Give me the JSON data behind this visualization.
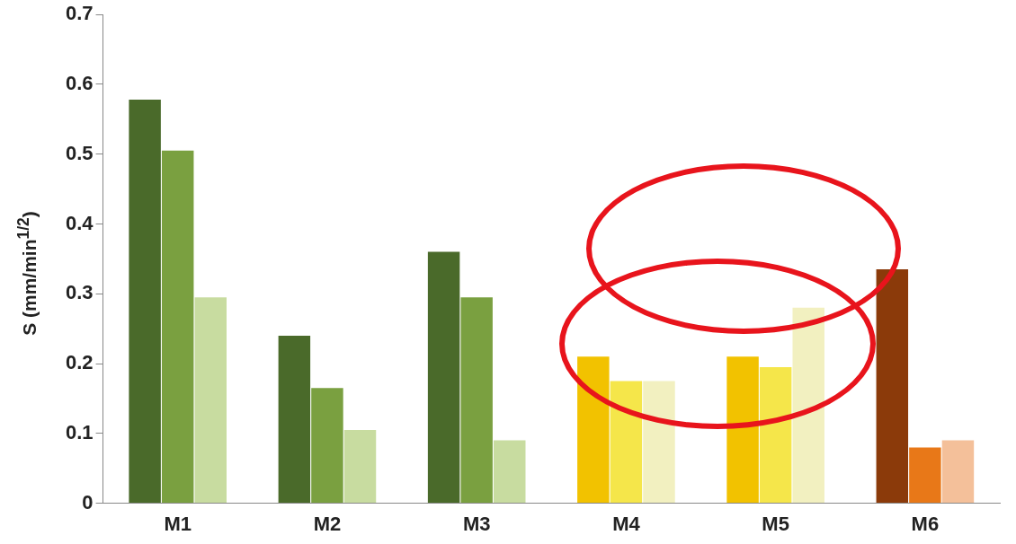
{
  "chart_data": {
    "type": "bar",
    "ylabel": "S (mm/min$^{1/2}$)",
    "categories": [
      "M1",
      "M2",
      "M3",
      "M4",
      "M5",
      "M6"
    ],
    "series": [
      {
        "colors": [
          "#4a6a2a",
          "#4a6a2a",
          "#4a6a2a",
          "#f2c200",
          "#f2c200",
          "#8b3a0a"
        ],
        "values": [
          0.578,
          0.24,
          0.36,
          0.21,
          0.21,
          0.335
        ]
      },
      {
        "colors": [
          "#7aa040",
          "#7aa040",
          "#7aa040",
          "#f5e64a",
          "#f5e64a",
          "#e87818"
        ],
        "values": [
          0.505,
          0.165,
          0.295,
          0.175,
          0.195,
          0.08
        ]
      },
      {
        "colors": [
          "#c8dca0",
          "#c8dca0",
          "#c8dca0",
          "#f2f0c0",
          "#f2f0c0",
          "#f4c09a"
        ],
        "values": [
          0.295,
          0.105,
          0.09,
          0.175,
          0.28,
          0.09
        ]
      }
    ],
    "ylim": [
      0,
      0.7
    ],
    "yticks": [
      0,
      0.1,
      0.2,
      0.3,
      0.4,
      0.5,
      0.6,
      0.7
    ],
    "grid": false,
    "legend": false
  }
}
